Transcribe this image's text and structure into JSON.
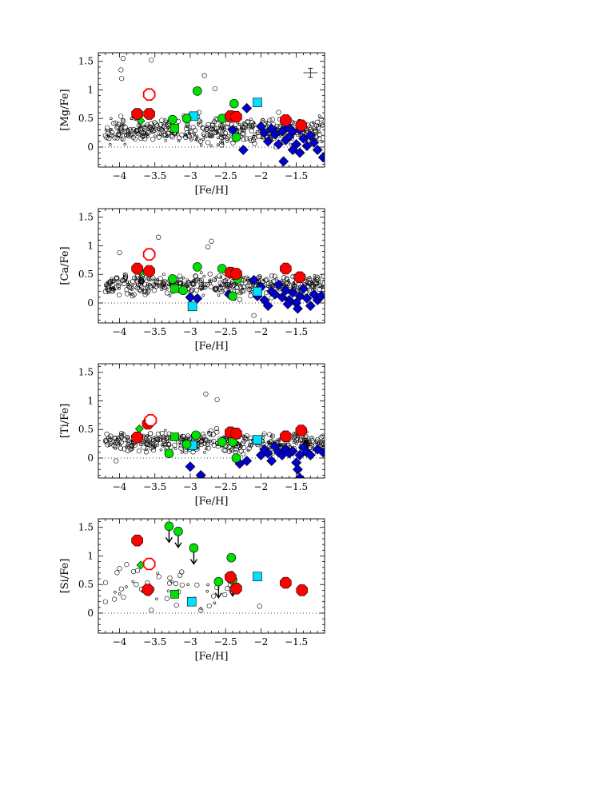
{
  "chart_data": [
    {
      "type": "scatter",
      "xlabel": "[Fe/H]",
      "ylabel": "[Mg/Fe]",
      "xlim": [
        -4.3,
        -1.1
      ],
      "ylim": [
        -0.35,
        1.65
      ],
      "xticks": [
        "−4",
        "−3.5",
        "−3",
        "−2.5",
        "−2",
        "−1.5"
      ],
      "yticks": [
        "0",
        "0.5",
        "1",
        "1.5"
      ],
      "typical_error": {
        "x": -1.3,
        "y": 1.3,
        "xerr": 0.1,
        "yerr": 0.08
      },
      "series": [
        {
          "marker": "red-octagon",
          "color": "#ff0000",
          "points": [
            [
              -3.75,
              0.58
            ],
            [
              -3.58,
              0.58
            ],
            [
              -2.43,
              0.54
            ],
            [
              -2.35,
              0.53
            ],
            [
              -1.65,
              0.47
            ],
            [
              -1.43,
              0.38
            ]
          ]
        },
        {
          "marker": "red-open-octagon",
          "color": "#ff0000",
          "points": [
            [
              -3.58,
              0.92
            ]
          ]
        },
        {
          "marker": "green-circle",
          "color": "#00e000",
          "points": [
            [
              -3.25,
              0.48
            ],
            [
              -3.05,
              0.5
            ],
            [
              -2.9,
              0.98
            ],
            [
              -2.55,
              0.5
            ],
            [
              -2.38,
              0.76
            ],
            [
              -2.35,
              0.17
            ]
          ]
        },
        {
          "marker": "green-square",
          "color": "#00e000",
          "points": [
            [
              -3.22,
              0.33
            ]
          ]
        },
        {
          "marker": "green-diamond",
          "color": "#00e000",
          "points": [
            [
              -3.7,
              0.46
            ]
          ]
        },
        {
          "marker": "cyan-square",
          "color": "#00e0ff",
          "points": [
            [
              -2.95,
              0.54
            ],
            [
              -2.05,
              0.78
            ]
          ]
        },
        {
          "marker": "blue-diamond",
          "color": "#0000cc",
          "points": [
            [
              -2.2,
              0.68
            ],
            [
              -2.4,
              0.3
            ],
            [
              -2.25,
              -0.05
            ],
            [
              -2.0,
              0.36
            ],
            [
              -1.95,
              0.25
            ],
            [
              -1.9,
              0.1
            ],
            [
              -1.85,
              0.32
            ],
            [
              -1.8,
              0.22
            ],
            [
              -1.75,
              0.05
            ],
            [
              -1.7,
              0.28
            ],
            [
              -1.65,
              0.12
            ],
            [
              -1.62,
              0.35
            ],
            [
              -1.6,
              0.18
            ],
            [
              -1.55,
              0.28
            ],
            [
              -1.5,
              0.05
            ],
            [
              -1.45,
              0.3
            ],
            [
              -1.4,
              0.15
            ],
            [
              -1.35,
              0.02
            ],
            [
              -1.3,
              0.2
            ],
            [
              -1.25,
              0.08
            ],
            [
              -1.2,
              -0.05
            ],
            [
              -1.68,
              -0.25
            ],
            [
              -1.12,
              -0.18
            ],
            [
              -1.55,
              -0.05
            ],
            [
              -1.45,
              -0.1
            ]
          ]
        }
      ],
      "comparison_sample_markers": "open-black-circles",
      "comparison_sample_fixed": [
        [
          -3.95,
          1.55
        ],
        [
          -3.55,
          1.52
        ],
        [
          -3.98,
          1.35
        ],
        [
          -3.97,
          1.2
        ],
        [
          -2.65,
          1.02
        ],
        [
          -2.8,
          1.25
        ],
        [
          -4.2,
          0.2
        ],
        [
          -4.15,
          0.15
        ],
        [
          -4.05,
          0.42
        ]
      ]
    },
    {
      "type": "scatter",
      "xlabel": "[Fe/H]",
      "ylabel": "[Ca/Fe]",
      "xlim": [
        -4.3,
        -1.1
      ],
      "ylim": [
        -0.35,
        1.65
      ],
      "xticks": [
        "−4",
        "−3.5",
        "−3",
        "−2.5",
        "−2",
        "−1.5"
      ],
      "yticks": [
        "0",
        "0.5",
        "1",
        "1.5"
      ],
      "series": [
        {
          "marker": "red-octagon",
          "color": "#ff0000",
          "points": [
            [
              -3.75,
              0.6
            ],
            [
              -3.58,
              0.56
            ],
            [
              -2.43,
              0.53
            ],
            [
              -2.35,
              0.51
            ],
            [
              -1.65,
              0.6
            ],
            [
              -1.45,
              0.45
            ]
          ]
        },
        {
          "marker": "red-open-octagon",
          "color": "#ff0000",
          "points": [
            [
              -3.58,
              0.85
            ]
          ]
        },
        {
          "marker": "green-circle",
          "color": "#00e000",
          "points": [
            [
              -3.25,
              0.42
            ],
            [
              -3.1,
              0.22
            ],
            [
              -2.9,
              0.63
            ],
            [
              -2.55,
              0.6
            ],
            [
              -2.4,
              0.12
            ],
            [
              -2.33,
              0.42
            ]
          ]
        },
        {
          "marker": "green-square",
          "color": "#00e000",
          "points": [
            [
              -3.22,
              0.25
            ]
          ]
        },
        {
          "marker": "green-diamond",
          "color": "#00e000",
          "points": [
            [
              -3.7,
              0.54
            ]
          ]
        },
        {
          "marker": "cyan-square",
          "color": "#00e0ff",
          "points": [
            [
              -2.97,
              -0.06
            ],
            [
              -2.05,
              0.2
            ]
          ]
        },
        {
          "marker": "blue-diamond",
          "color": "#0000cc",
          "points": [
            [
              -3.0,
              0.1
            ],
            [
              -2.9,
              0.08
            ],
            [
              -2.45,
              0.15
            ],
            [
              -2.1,
              0.4
            ],
            [
              -2.05,
              0.12
            ],
            [
              -2.0,
              0.28
            ],
            [
              -1.95,
              0.05
            ],
            [
              -1.9,
              -0.05
            ],
            [
              -1.85,
              0.2
            ],
            [
              -1.8,
              0.15
            ],
            [
              -1.75,
              0.32
            ],
            [
              -1.7,
              0.1
            ],
            [
              -1.65,
              0.22
            ],
            [
              -1.6,
              0.05
            ],
            [
              -1.55,
              0.18
            ],
            [
              -1.5,
              0.0
            ],
            [
              -1.45,
              0.12
            ],
            [
              -1.4,
              0.25
            ],
            [
              -1.35,
              0.08
            ],
            [
              -1.3,
              -0.05
            ],
            [
              -1.25,
              0.15
            ],
            [
              -1.2,
              0.05
            ],
            [
              -1.15,
              0.12
            ],
            [
              -1.62,
              -0.02
            ],
            [
              -1.48,
              -0.1
            ]
          ]
        }
      ],
      "comparison_sample_markers": "open-black-circles",
      "comparison_sample_fixed": [
        [
          -4.0,
          0.88
        ],
        [
          -3.45,
          1.15
        ],
        [
          -2.7,
          1.08
        ],
        [
          -2.75,
          0.98
        ],
        [
          -4.2,
          0.2
        ],
        [
          -4.15,
          0.22
        ],
        [
          -2.1,
          -0.22
        ]
      ]
    },
    {
      "type": "scatter",
      "xlabel": "[Fe/H]",
      "ylabel": "[Ti/Fe]",
      "xlim": [
        -4.3,
        -1.1
      ],
      "ylim": [
        -0.35,
        1.65
      ],
      "xticks": [
        "−4",
        "−3.5",
        "−3",
        "−2.5",
        "−2",
        "−1.5"
      ],
      "yticks": [
        "0",
        "0.5",
        "1",
        "1.5"
      ],
      "series": [
        {
          "marker": "red-octagon",
          "color": "#ff0000",
          "points": [
            [
              -3.75,
              0.36
            ],
            [
              -3.6,
              0.6
            ],
            [
              -3.57,
              0.65
            ],
            [
              -2.43,
              0.45
            ],
            [
              -2.35,
              0.43
            ],
            [
              -1.65,
              0.38
            ],
            [
              -1.43,
              0.48
            ]
          ]
        },
        {
          "marker": "red-open-octagon",
          "color": "#ff0000",
          "points": [
            [
              -3.56,
              0.66
            ]
          ]
        },
        {
          "marker": "green-circle",
          "color": "#00e000",
          "points": [
            [
              -3.3,
              0.08
            ],
            [
              -3.05,
              0.24
            ],
            [
              -2.92,
              0.4
            ],
            [
              -2.55,
              0.28
            ],
            [
              -2.4,
              0.28
            ],
            [
              -2.35,
              0.0
            ]
          ]
        },
        {
          "marker": "green-square",
          "color": "#00e000",
          "points": [
            [
              -3.22,
              0.37
            ]
          ]
        },
        {
          "marker": "green-diamond",
          "color": "#00e000",
          "points": [
            [
              -3.72,
              0.51
            ]
          ]
        },
        {
          "marker": "cyan-square",
          "color": "#00e0ff",
          "points": [
            [
              -2.97,
              0.22
            ],
            [
              -2.05,
              0.32
            ]
          ]
        },
        {
          "marker": "blue-diamond",
          "color": "#0000cc",
          "points": [
            [
              -3.0,
              -0.15
            ],
            [
              -2.85,
              -0.3
            ],
            [
              -2.2,
              -0.05
            ],
            [
              -2.0,
              0.05
            ],
            [
              -1.95,
              0.15
            ],
            [
              -1.9,
              0.08
            ],
            [
              -1.85,
              -0.05
            ],
            [
              -1.8,
              0.2
            ],
            [
              -1.75,
              0.1
            ],
            [
              -1.7,
              0.05
            ],
            [
              -1.65,
              0.15
            ],
            [
              -1.6,
              0.08
            ],
            [
              -1.55,
              0.12
            ],
            [
              -1.5,
              -0.08
            ],
            [
              -1.45,
              0.05
            ],
            [
              -1.4,
              0.18
            ],
            [
              -1.35,
              0.1
            ],
            [
              -1.3,
              0.05
            ],
            [
              -1.2,
              0.15
            ],
            [
              -1.12,
              0.1
            ],
            [
              -1.48,
              -0.2
            ],
            [
              -1.45,
              -0.35
            ],
            [
              -2.3,
              -0.1
            ]
          ]
        }
      ],
      "comparison_sample_markers": "open-black-circles",
      "comparison_sample_fixed": [
        [
          -2.78,
          1.12
        ],
        [
          -2.62,
          1.02
        ],
        [
          -4.05,
          -0.05
        ],
        [
          -4.2,
          0.3
        ],
        [
          -4.15,
          0.35
        ]
      ]
    },
    {
      "type": "scatter",
      "xlabel": "[Fe/H]",
      "ylabel": "[Si/Fe]",
      "xlim": [
        -4.3,
        -1.1
      ],
      "ylim": [
        -0.35,
        1.65
      ],
      "xticks": [
        "−4",
        "−3.5",
        "−3",
        "−2.5",
        "−2",
        "−1.5"
      ],
      "yticks": [
        "0",
        "0.5",
        "1",
        "1.5"
      ],
      "series": [
        {
          "marker": "red-octagon",
          "color": "#ff0000",
          "points": [
            [
              -3.75,
              1.27
            ],
            [
              -3.6,
              0.41
            ],
            [
              -2.43,
              0.63
            ],
            [
              -2.35,
              0.43
            ],
            [
              -1.65,
              0.53
            ],
            [
              -1.42,
              0.4
            ]
          ]
        },
        {
          "marker": "red-open-octagon",
          "color": "#ff0000",
          "points": [
            [
              -3.58,
              0.86
            ]
          ]
        },
        {
          "marker": "green-circle-upper-limit",
          "color": "#00e000",
          "points": [
            [
              -3.3,
              1.52
            ],
            [
              -3.17,
              1.43
            ],
            [
              -2.95,
              1.14
            ],
            [
              -2.6,
              0.55
            ],
            [
              -2.4,
              0.58
            ]
          ]
        },
        {
          "marker": "green-circle",
          "color": "#00e000",
          "points": [
            [
              -2.42,
              0.97
            ]
          ]
        },
        {
          "marker": "green-square",
          "color": "#00e000",
          "points": [
            [
              -3.22,
              0.33
            ]
          ]
        },
        {
          "marker": "green-diamond",
          "color": "#00e000",
          "points": [
            [
              -3.7,
              0.84
            ]
          ]
        },
        {
          "marker": "cyan-square",
          "color": "#00e0ff",
          "points": [
            [
              -2.98,
              0.2
            ],
            [
              -2.05,
              0.64
            ]
          ]
        }
      ],
      "comparison_sample_markers": "open-black-circles",
      "comparison_sample_fixed": [
        [
          -4.0,
          0.78
        ],
        [
          -3.9,
          0.85
        ],
        [
          -4.2,
          0.2
        ],
        [
          -3.55,
          0.05
        ],
        [
          -2.85,
          0.05
        ],
        [
          -2.02,
          0.12
        ]
      ]
    }
  ]
}
